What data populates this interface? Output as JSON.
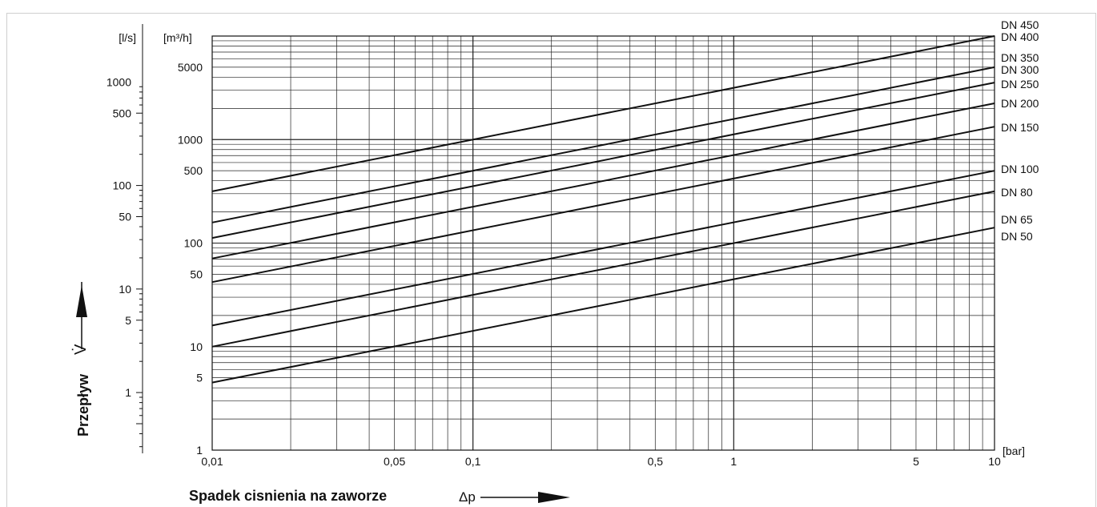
{
  "chart_data": {
    "type": "line",
    "x_unit": "[bar]",
    "y_unit_left": "[l/s]",
    "y_unit_right": "[m³/h]",
    "xlabel": "Spadek cisnienia na zaworze",
    "xlabel_symbol": "Δp",
    "ylabel": "Przepływ",
    "ylabel_symbol": "V̇",
    "x_scale": "log",
    "y_scale": "log",
    "xlim": [
      0.01,
      10
    ],
    "ylim_m3h": [
      1,
      10000
    ],
    "grid": true,
    "x_ticks": [
      {
        "v": 0.01,
        "label": "0,01"
      },
      {
        "v": 0.05,
        "label": "0,05"
      },
      {
        "v": 0.1,
        "label": "0,1"
      },
      {
        "v": 0.5,
        "label": "0,5"
      },
      {
        "v": 1,
        "label": "1"
      },
      {
        "v": 5,
        "label": "5"
      },
      {
        "v": 10,
        "label": "10"
      }
    ],
    "y_ticks_m3h": [
      {
        "v": 1,
        "label": "1"
      },
      {
        "v": 5,
        "label": "5"
      },
      {
        "v": 10,
        "label": "10"
      },
      {
        "v": 50,
        "label": "50"
      },
      {
        "v": 100,
        "label": "100"
      },
      {
        "v": 500,
        "label": "500"
      },
      {
        "v": 1000,
        "label": "1000"
      },
      {
        "v": 5000,
        "label": "5000"
      }
    ],
    "y_ticks_ls": [
      {
        "v": 1,
        "label": "1"
      },
      {
        "v": 5,
        "label": "5"
      },
      {
        "v": 10,
        "label": "10"
      },
      {
        "v": 50,
        "label": "50"
      },
      {
        "v": 100,
        "label": "100"
      },
      {
        "v": 500,
        "label": "500"
      },
      {
        "v": 1000,
        "label": "1000"
      }
    ],
    "series": [
      {
        "name": "DN 450",
        "x": [
          0.01,
          10
        ],
        "y": [
          316,
          10000
        ]
      },
      {
        "name": "DN 400",
        "x": [],
        "y": []
      },
      {
        "name": "DN 350",
        "x": [
          0.01,
          10
        ],
        "y": [
          158,
          5000
        ]
      },
      {
        "name": "DN 300",
        "x": [
          0.01,
          10
        ],
        "y": [
          112,
          3550
        ]
      },
      {
        "name": "DN  250",
        "x": [
          0.01,
          10
        ],
        "y": [
          71,
          2240
        ]
      },
      {
        "name": "DN 200",
        "x": [
          0.01,
          10
        ],
        "y": [
          42,
          1330
        ]
      },
      {
        "name": "DN 150",
        "x": [],
        "y": []
      },
      {
        "name": "DN 100",
        "x": [
          0.01,
          10
        ],
        "y": [
          16,
          500
        ]
      },
      {
        "name": "DN 80",
        "x": [
          0.01,
          10
        ],
        "y": [
          10,
          316
        ]
      },
      {
        "name": "DN 65",
        "x": [],
        "y": []
      },
      {
        "name": "DN 50",
        "x": [
          0.01,
          10
        ],
        "y": [
          4.5,
          141
        ]
      }
    ]
  }
}
